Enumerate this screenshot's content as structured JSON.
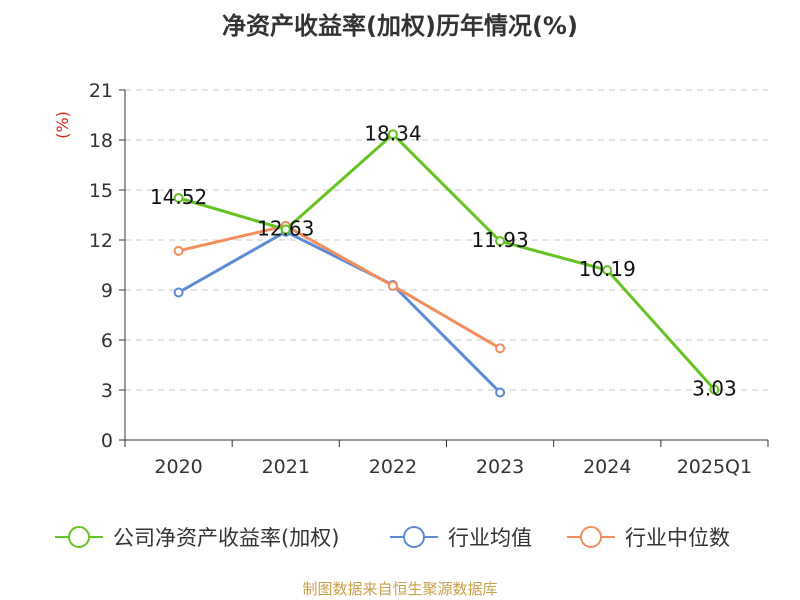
{
  "chart_data": {
    "type": "line",
    "title": "净资产收益率(加权)历年情况(%)",
    "ylabel": "(%)",
    "xlabel": "",
    "categories": [
      "2020",
      "2021",
      "2022",
      "2023",
      "2024",
      "2025Q1"
    ],
    "ylim": [
      0,
      21
    ],
    "yticks": [
      0,
      3,
      6,
      9,
      12,
      15,
      18,
      21
    ],
    "grid": true,
    "legend_position": "bottom",
    "series": [
      {
        "name": "公司净资产收益率(加权)",
        "color": "#66c322",
        "values": [
          14.52,
          12.63,
          18.34,
          11.93,
          10.19,
          3.03
        ],
        "labels": [
          "14.52",
          "12.63",
          "18.34",
          "11.93",
          "10.19",
          "3.03"
        ]
      },
      {
        "name": "行业均值",
        "color": "#5b8ad6",
        "values": [
          8.85,
          12.5,
          9.3,
          2.85,
          null,
          null
        ]
      },
      {
        "name": "行业中位数",
        "color": "#f28e5c",
        "values": [
          11.35,
          12.85,
          9.25,
          5.5,
          null,
          null
        ]
      }
    ]
  },
  "source": "制图数据来自恒生聚源数据库"
}
